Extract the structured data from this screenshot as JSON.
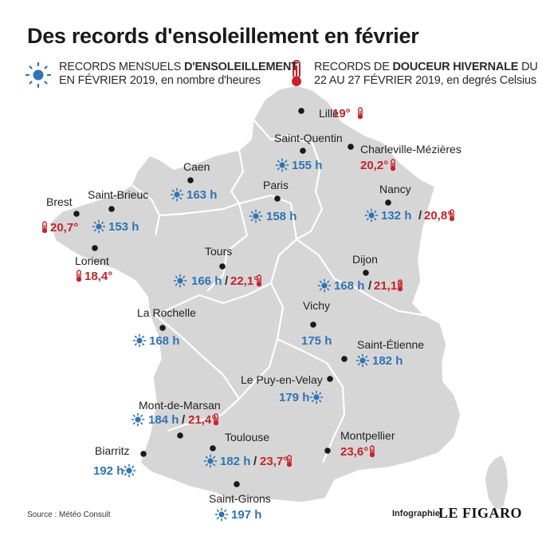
{
  "title": "Des records d'ensoleillement en février",
  "legend": {
    "sun": {
      "line1_prefix": "RECORDS MENSUELS ",
      "line1_bold": "D'ENSOLEILLEMENT",
      "line2": "EN FÉVRIER 2019, en nombre d'heures",
      "color": "#2f74b5",
      "icon": "sun-icon"
    },
    "temp": {
      "line1_prefix": "RECORDS DE ",
      "line1_bold": "DOUCEUR HIVERNALE",
      "line1_suffix": " DU",
      "line2": "22 AU 27 FÉVRIER 2019, en degrés Celsius",
      "color": "#c4232b",
      "icon": "thermometer-icon"
    }
  },
  "cities": [
    {
      "name": "Lille",
      "temp": "19°"
    },
    {
      "name": "Saint-Quentin",
      "sun": "155 h"
    },
    {
      "name": "Charleville-Mézières",
      "temp": "20,2°"
    },
    {
      "name": "Caen",
      "sun": "163 h"
    },
    {
      "name": "Paris",
      "sun": "158 h"
    },
    {
      "name": "Nancy",
      "sun": "132 h",
      "temp": "20,8°"
    },
    {
      "name": "Brest",
      "temp": "20,7°"
    },
    {
      "name": "Saint-Brieuc",
      "sun": "153 h"
    },
    {
      "name": "Lorient",
      "temp": "18,4°"
    },
    {
      "name": "Tours",
      "sun": "166 h",
      "temp": "22,1°"
    },
    {
      "name": "Dijon",
      "sun": "168 h",
      "temp": "21,1°"
    },
    {
      "name": "La Rochelle",
      "sun": "168 h"
    },
    {
      "name": "Vichy",
      "sun": "175 h"
    },
    {
      "name": "Saint-Étienne",
      "sun": "182 h"
    },
    {
      "name": "Le Puy-en-Velay",
      "sun": "179 h"
    },
    {
      "name": "Mont-de-Marsan",
      "sun": "184 h",
      "temp": "21,4°"
    },
    {
      "name": "Biarritz",
      "sun": "192 h"
    },
    {
      "name": "Toulouse",
      "sun": "182 h",
      "temp": "23,7°"
    },
    {
      "name": "Montpellier",
      "temp": "23,6°"
    },
    {
      "name": "Saint-Girons",
      "sun": "197 h"
    }
  ],
  "separator": "/",
  "footer": {
    "source": "Source : Météo Consult",
    "credit": "Infographie",
    "logo": "LE FIGARO"
  },
  "colors": {
    "map_fill": "#d6d6d6",
    "border": "#ffffff",
    "sun": "#2f74b5",
    "temp": "#c4232b"
  }
}
